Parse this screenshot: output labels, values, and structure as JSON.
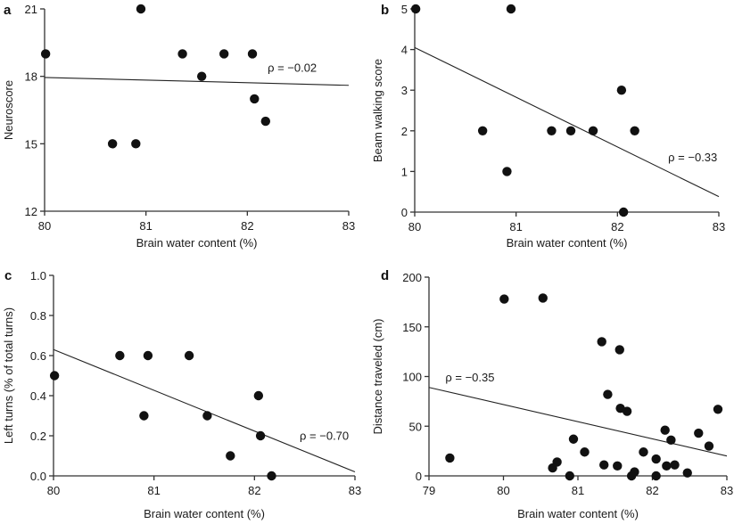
{
  "chart_data": [
    {
      "panel": "a",
      "type": "scatter",
      "title": "",
      "xlabel": "Brain water content (%)",
      "ylabel": "Neuroscore",
      "xlim": [
        80,
        83
      ],
      "ylim": [
        12,
        21
      ],
      "xticks": [
        80,
        81,
        82,
        83
      ],
      "yticks": [
        12,
        15,
        18,
        21
      ],
      "xtick_labels": [
        "80",
        "81",
        "82",
        "83"
      ],
      "ytick_labels": [
        "12",
        "15",
        "18",
        "21"
      ],
      "grid": false,
      "annotation": "ρ = −0.02",
      "annotation_pos": [
        82.2,
        18.2
      ],
      "fit_line": [
        [
          80,
          17.95
        ],
        [
          83,
          17.6
        ]
      ],
      "points": [
        [
          80.01,
          19
        ],
        [
          80.95,
          21
        ],
        [
          80.67,
          15
        ],
        [
          80.9,
          15
        ],
        [
          81.36,
          19
        ],
        [
          81.55,
          18
        ],
        [
          81.77,
          19
        ],
        [
          82.05,
          19
        ],
        [
          82.07,
          17
        ],
        [
          82.18,
          16
        ]
      ]
    },
    {
      "panel": "b",
      "type": "scatter",
      "title": "",
      "xlabel": "Brain water content (%)",
      "ylabel": "Beam walking score",
      "xlim": [
        80,
        83
      ],
      "ylim": [
        0,
        5
      ],
      "xticks": [
        80,
        81,
        82,
        83
      ],
      "yticks": [
        0,
        1,
        2,
        3,
        4,
        5
      ],
      "xtick_labels": [
        "80",
        "81",
        "82",
        "83"
      ],
      "ytick_labels": [
        "0",
        "1",
        "2",
        "3",
        "4",
        "5"
      ],
      "grid": false,
      "annotation": "ρ = −0.33",
      "annotation_pos": [
        82.5,
        1.25
      ],
      "fit_line": [
        [
          80,
          4.05
        ],
        [
          83,
          0.38
        ]
      ],
      "points": [
        [
          80.01,
          5
        ],
        [
          80.95,
          5
        ],
        [
          80.67,
          2
        ],
        [
          80.91,
          1
        ],
        [
          81.35,
          2
        ],
        [
          81.54,
          2
        ],
        [
          81.76,
          2
        ],
        [
          82.04,
          3
        ],
        [
          82.17,
          2
        ],
        [
          82.06,
          0
        ]
      ]
    },
    {
      "panel": "c",
      "type": "scatter",
      "title": "",
      "xlabel": "Brain water content (%)",
      "ylabel": "Left turns (% of total turns)",
      "xlim": [
        80,
        83
      ],
      "ylim": [
        0,
        1
      ],
      "xticks": [
        80,
        81,
        82,
        83
      ],
      "yticks": [
        0,
        0.2,
        0.4,
        0.6,
        0.8,
        1.0
      ],
      "xtick_labels": [
        "80",
        "81",
        "82",
        "83"
      ],
      "ytick_labels": [
        "0.0",
        "0.2",
        "0.4",
        "0.6",
        "0.8",
        "1.0"
      ],
      "grid": false,
      "annotation": "ρ = −0.70",
      "annotation_pos": [
        82.45,
        0.18
      ],
      "fit_line": [
        [
          80,
          0.63
        ],
        [
          83,
          0.02
        ]
      ],
      "points": [
        [
          80.01,
          0.5
        ],
        [
          80.66,
          0.6
        ],
        [
          80.94,
          0.6
        ],
        [
          81.35,
          0.6
        ],
        [
          80.9,
          0.3
        ],
        [
          81.53,
          0.3
        ],
        [
          82.04,
          0.4
        ],
        [
          82.06,
          0.2
        ],
        [
          81.76,
          0.1
        ],
        [
          82.17,
          0.0
        ]
      ]
    },
    {
      "panel": "d",
      "type": "scatter",
      "title": "",
      "xlabel": "Brain water content (%)",
      "ylabel": "Distance traveled (cm)",
      "xlim": [
        79,
        83
      ],
      "ylim": [
        0,
        200
      ],
      "xticks": [
        79,
        80,
        81,
        82,
        83
      ],
      "yticks": [
        0,
        50,
        100,
        150,
        200
      ],
      "xtick_labels": [
        "79",
        "80",
        "81",
        "82",
        "83"
      ],
      "ytick_labels": [
        "0",
        "50",
        "100",
        "150",
        "200"
      ],
      "grid": false,
      "annotation": "ρ = −0.35",
      "annotation_pos": [
        79.22,
        95
      ],
      "fit_line": [
        [
          79,
          89
        ],
        [
          83,
          20
        ]
      ],
      "points": [
        [
          79.28,
          18
        ],
        [
          80.01,
          178
        ],
        [
          80.53,
          179
        ],
        [
          81.32,
          135
        ],
        [
          81.56,
          127
        ],
        [
          81.4,
          82
        ],
        [
          81.57,
          68
        ],
        [
          81.66,
          65
        ],
        [
          82.88,
          67
        ],
        [
          82.17,
          46
        ],
        [
          82.62,
          43
        ],
        [
          82.25,
          36
        ],
        [
          82.76,
          30
        ],
        [
          80.94,
          37
        ],
        [
          81.09,
          24
        ],
        [
          81.88,
          24
        ],
        [
          80.72,
          14
        ],
        [
          80.66,
          8
        ],
        [
          80.89,
          0
        ],
        [
          81.35,
          11
        ],
        [
          81.53,
          10
        ],
        [
          81.76,
          4
        ],
        [
          81.72,
          0
        ],
        [
          82.05,
          17
        ],
        [
          82.05,
          0
        ],
        [
          82.19,
          10
        ],
        [
          82.3,
          11
        ],
        [
          82.47,
          3
        ]
      ]
    }
  ]
}
